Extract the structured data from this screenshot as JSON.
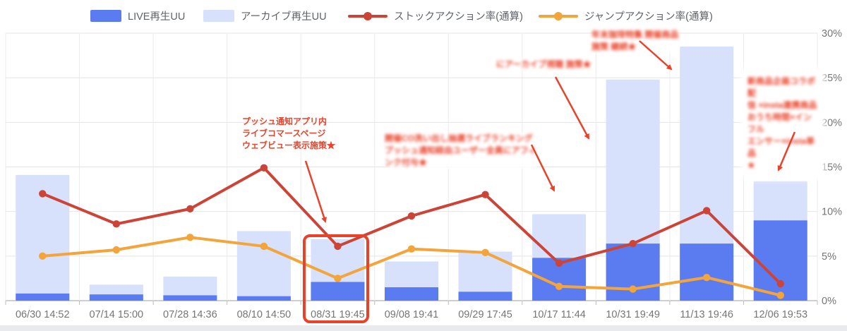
{
  "legend": [
    {
      "label": "LIVE再生UU",
      "type": "bar",
      "color": "#5b7cf0"
    },
    {
      "label": "アーカイブ再生UU",
      "type": "bar",
      "color": "#d7e1fc"
    },
    {
      "label": "ストックアクション率(通算)",
      "type": "line",
      "color": "#cc4437"
    },
    {
      "label": "ジャンプアクション率(通算)",
      "type": "line",
      "color": "#f3a43b"
    }
  ],
  "chart_data": {
    "type": "bar",
    "subtype": "bar+line combo, bars overlaid (LIVE drawn in front of archive), lines on same % axis",
    "categories": [
      "06/30 14:52",
      "07/14 15:00",
      "07/28 14:36",
      "08/10 14:50",
      "08/31 19:45",
      "09/08 19:41",
      "09/29 17:45",
      "10/17 11:44",
      "10/31 19:49",
      "11/13 19:46",
      "12/06 19:53"
    ],
    "series": [
      {
        "name": "LIVE再生UU",
        "type": "bar",
        "color": "#5b7cf0",
        "values": [
          0.8,
          0.7,
          0.6,
          0.5,
          2.1,
          1.5,
          1.0,
          4.8,
          6.4,
          6.4,
          9.0
        ]
      },
      {
        "name": "アーカイブ再生UU",
        "type": "bar",
        "color": "#d7e1fc",
        "values": [
          14.1,
          1.8,
          2.7,
          7.8,
          6.9,
          4.4,
          5.5,
          9.7,
          24.8,
          28.5,
          13.4
        ]
      },
      {
        "name": "ストックアクション率(通算)",
        "type": "line",
        "color": "#cc4437",
        "values": [
          12.0,
          8.6,
          10.3,
          14.9,
          6.1,
          9.5,
          11.9,
          4.2,
          6.4,
          10.1,
          1.9
        ]
      },
      {
        "name": "ジャンプアクション率(通算)",
        "type": "line",
        "color": "#f3a43b",
        "values": [
          5.0,
          5.7,
          7.1,
          6.1,
          2.5,
          5.8,
          5.4,
          1.6,
          1.3,
          2.6,
          0.6
        ]
      }
    ],
    "ylim": [
      0,
      30
    ],
    "yticks": [
      "0%",
      "5%",
      "10%",
      "15%",
      "20%",
      "25%",
      "30%"
    ],
    "y_axis_side": "right",
    "grid": true,
    "legend_position": "top"
  },
  "annotations": {
    "accent_color": "#e8432a",
    "push_note": {
      "blurred": false,
      "lines": [
        "プッシュ通知アプリ内",
        "ライブコマースページ",
        "ウェブビュー表示施策★"
      ]
    },
    "note_b": {
      "blurred": true,
      "lines": [
        "にアーカイブ視聴 施策★"
      ]
    },
    "note_c": {
      "blurred": true,
      "lines": [
        "開催CO洗い出し抽選ライブランキング",
        "プッシュ通知経由ユーザー全員にアフィ",
        "ンク付与★"
      ]
    },
    "note_d": {
      "blurred": true,
      "lines": [
        "年末珈琲特集 開催商品",
        "施策 継続★"
      ]
    },
    "note_e": {
      "blurred": true,
      "lines": [
        "新商品企画コラボ配",
        "信 ×insta連携商品",
        "おうち時間×インフル",
        "エンサー×insta単品",
        "★"
      ]
    }
  },
  "highlight": {
    "category": "08/31 19:45"
  }
}
